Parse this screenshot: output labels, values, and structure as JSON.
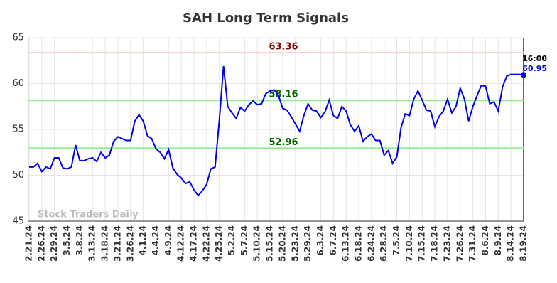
{
  "chart_data": {
    "type": "line",
    "title": "SAH Long Term Signals",
    "watermark": "Stock Traders Daily",
    "last_time": "16:00",
    "color": "#0000ee",
    "ylim": [
      45,
      65
    ],
    "yticks": [
      45,
      50,
      55,
      60,
      65
    ],
    "grid": true,
    "categories": [
      "2.21.24",
      null,
      null,
      "2.26.24",
      null,
      null,
      "2.29.24",
      null,
      null,
      "3.5.24",
      null,
      null,
      "3.8.24",
      null,
      null,
      "3.13.24",
      null,
      null,
      "3.18.24",
      null,
      null,
      "3.21.24",
      null,
      null,
      "3.26.24",
      null,
      null,
      "4.1.24",
      null,
      null,
      "4.4.24",
      null,
      null,
      "4.9.24",
      null,
      null,
      "4.12.24",
      null,
      null,
      "4.17.24",
      null,
      null,
      "4.22.24",
      null,
      null,
      "4.25.24",
      null,
      null,
      "5.2.24",
      null,
      null,
      "5.7.24",
      null,
      null,
      "5.10.24",
      null,
      null,
      "5.15.24",
      null,
      null,
      "5.20.24",
      null,
      null,
      "5.23.24",
      null,
      null,
      "5.29.24",
      null,
      null,
      "6.3.24",
      null,
      null,
      "6.7.24",
      null,
      null,
      "6.13.24",
      null,
      null,
      "6.18.24",
      null,
      null,
      "6.24.24",
      null,
      null,
      "6.28.24",
      null,
      null,
      "7.5.24",
      null,
      null,
      "7.10.24",
      null,
      null,
      "7.15.24",
      null,
      null,
      "7.18.24",
      null,
      null,
      "7.23.24",
      null,
      null,
      "7.26.24",
      null,
      null,
      "7.31.24",
      null,
      null,
      "8.6.24",
      null,
      null,
      "8.9.24",
      null,
      null,
      "8.14.24",
      null,
      null,
      "8.19.24"
    ],
    "values": [
      50.9,
      50.9,
      51.3,
      50.4,
      50.9,
      50.7,
      51.9,
      51.9,
      50.8,
      50.7,
      50.9,
      53.3,
      51.6,
      51.6,
      51.8,
      51.9,
      51.5,
      52.5,
      51.9,
      52.2,
      53.7,
      54.2,
      54.0,
      53.8,
      53.8,
      55.9,
      56.6,
      55.9,
      54.3,
      54.0,
      52.9,
      52.5,
      51.8,
      52.8,
      50.8,
      50.1,
      49.7,
      49.1,
      49.3,
      48.4,
      47.8,
      48.3,
      49.0,
      50.7,
      50.9,
      56.0,
      61.9,
      57.5,
      56.8,
      56.2,
      57.4,
      57.0,
      57.7,
      58.1,
      57.7,
      57.8,
      58.9,
      59.2,
      59.3,
      58.7,
      57.3,
      57.1,
      56.4,
      55.6,
      54.8,
      56.5,
      57.8,
      57.1,
      57.0,
      56.3,
      56.9,
      58.2,
      56.5,
      56.2,
      57.5,
      57.0,
      55.5,
      54.8,
      55.4,
      53.7,
      54.2,
      54.5,
      53.8,
      53.8,
      52.2,
      52.7,
      51.3,
      52.0,
      55.2,
      56.7,
      56.5,
      58.3,
      59.2,
      58.2,
      57.1,
      57.0,
      55.3,
      56.4,
      57.0,
      58.3,
      56.8,
      57.5,
      59.5,
      58.3,
      55.9,
      57.5,
      58.7,
      59.8,
      59.7,
      57.8,
      58.0,
      57.0,
      59.6,
      60.8,
      61.0,
      61.0,
      61.0,
      60.95
    ],
    "levels": [
      {
        "value": 63.36,
        "line_color": "#ffcccc",
        "text_color": "#8b0000"
      },
      {
        "value": 58.16,
        "line_color": "#90ee90",
        "text_color": "#006400"
      },
      {
        "value": 52.96,
        "line_color": "#90ee90",
        "text_color": "#006400"
      }
    ]
  }
}
